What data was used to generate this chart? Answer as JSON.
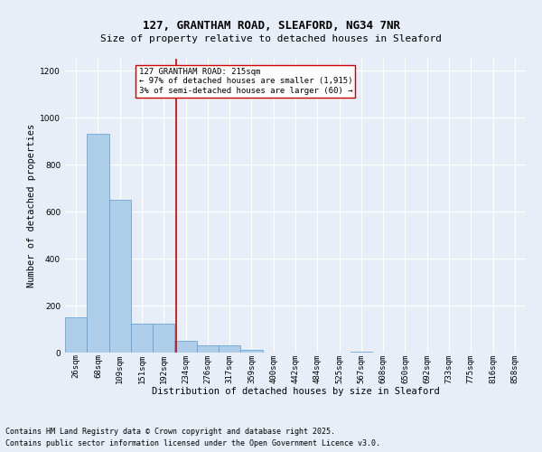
{
  "title1": "127, GRANTHAM ROAD, SLEAFORD, NG34 7NR",
  "title2": "Size of property relative to detached houses in Sleaford",
  "xlabel": "Distribution of detached houses by size in Sleaford",
  "ylabel": "Number of detached properties",
  "footer1": "Contains HM Land Registry data © Crown copyright and database right 2025.",
  "footer2": "Contains public sector information licensed under the Open Government Licence v3.0.",
  "annotation_line1": "127 GRANTHAM ROAD: 215sqm",
  "annotation_line2": "← 97% of detached houses are smaller (1,915)",
  "annotation_line3": "3% of semi-detached houses are larger (60) →",
  "bin_labels": [
    "26sqm",
    "68sqm",
    "109sqm",
    "151sqm",
    "192sqm",
    "234sqm",
    "276sqm",
    "317sqm",
    "359sqm",
    "400sqm",
    "442sqm",
    "484sqm",
    "525sqm",
    "567sqm",
    "608sqm",
    "650sqm",
    "692sqm",
    "733sqm",
    "775sqm",
    "816sqm",
    "858sqm"
  ],
  "bar_values": [
    150,
    930,
    650,
    125,
    125,
    50,
    30,
    30,
    10,
    0,
    0,
    0,
    0,
    5,
    0,
    0,
    0,
    0,
    0,
    0,
    0
  ],
  "bar_color": "#aecde8",
  "bar_edge_color": "#5b9bd5",
  "red_line_x": 4.57,
  "ylim": [
    0,
    1250
  ],
  "yticks": [
    0,
    200,
    400,
    600,
    800,
    1000,
    1200
  ],
  "bg_color": "#e8eef7",
  "plot_bg_color": "#e8eef7",
  "annotation_box_color": "#ffffff",
  "annotation_box_edge": "#cc0000",
  "red_line_color": "#cc0000",
  "title_fontsize": 9,
  "subtitle_fontsize": 8,
  "axis_label_fontsize": 7.5,
  "tick_fontsize": 6.5,
  "annotation_fontsize": 6.5,
  "footer_fontsize": 6
}
